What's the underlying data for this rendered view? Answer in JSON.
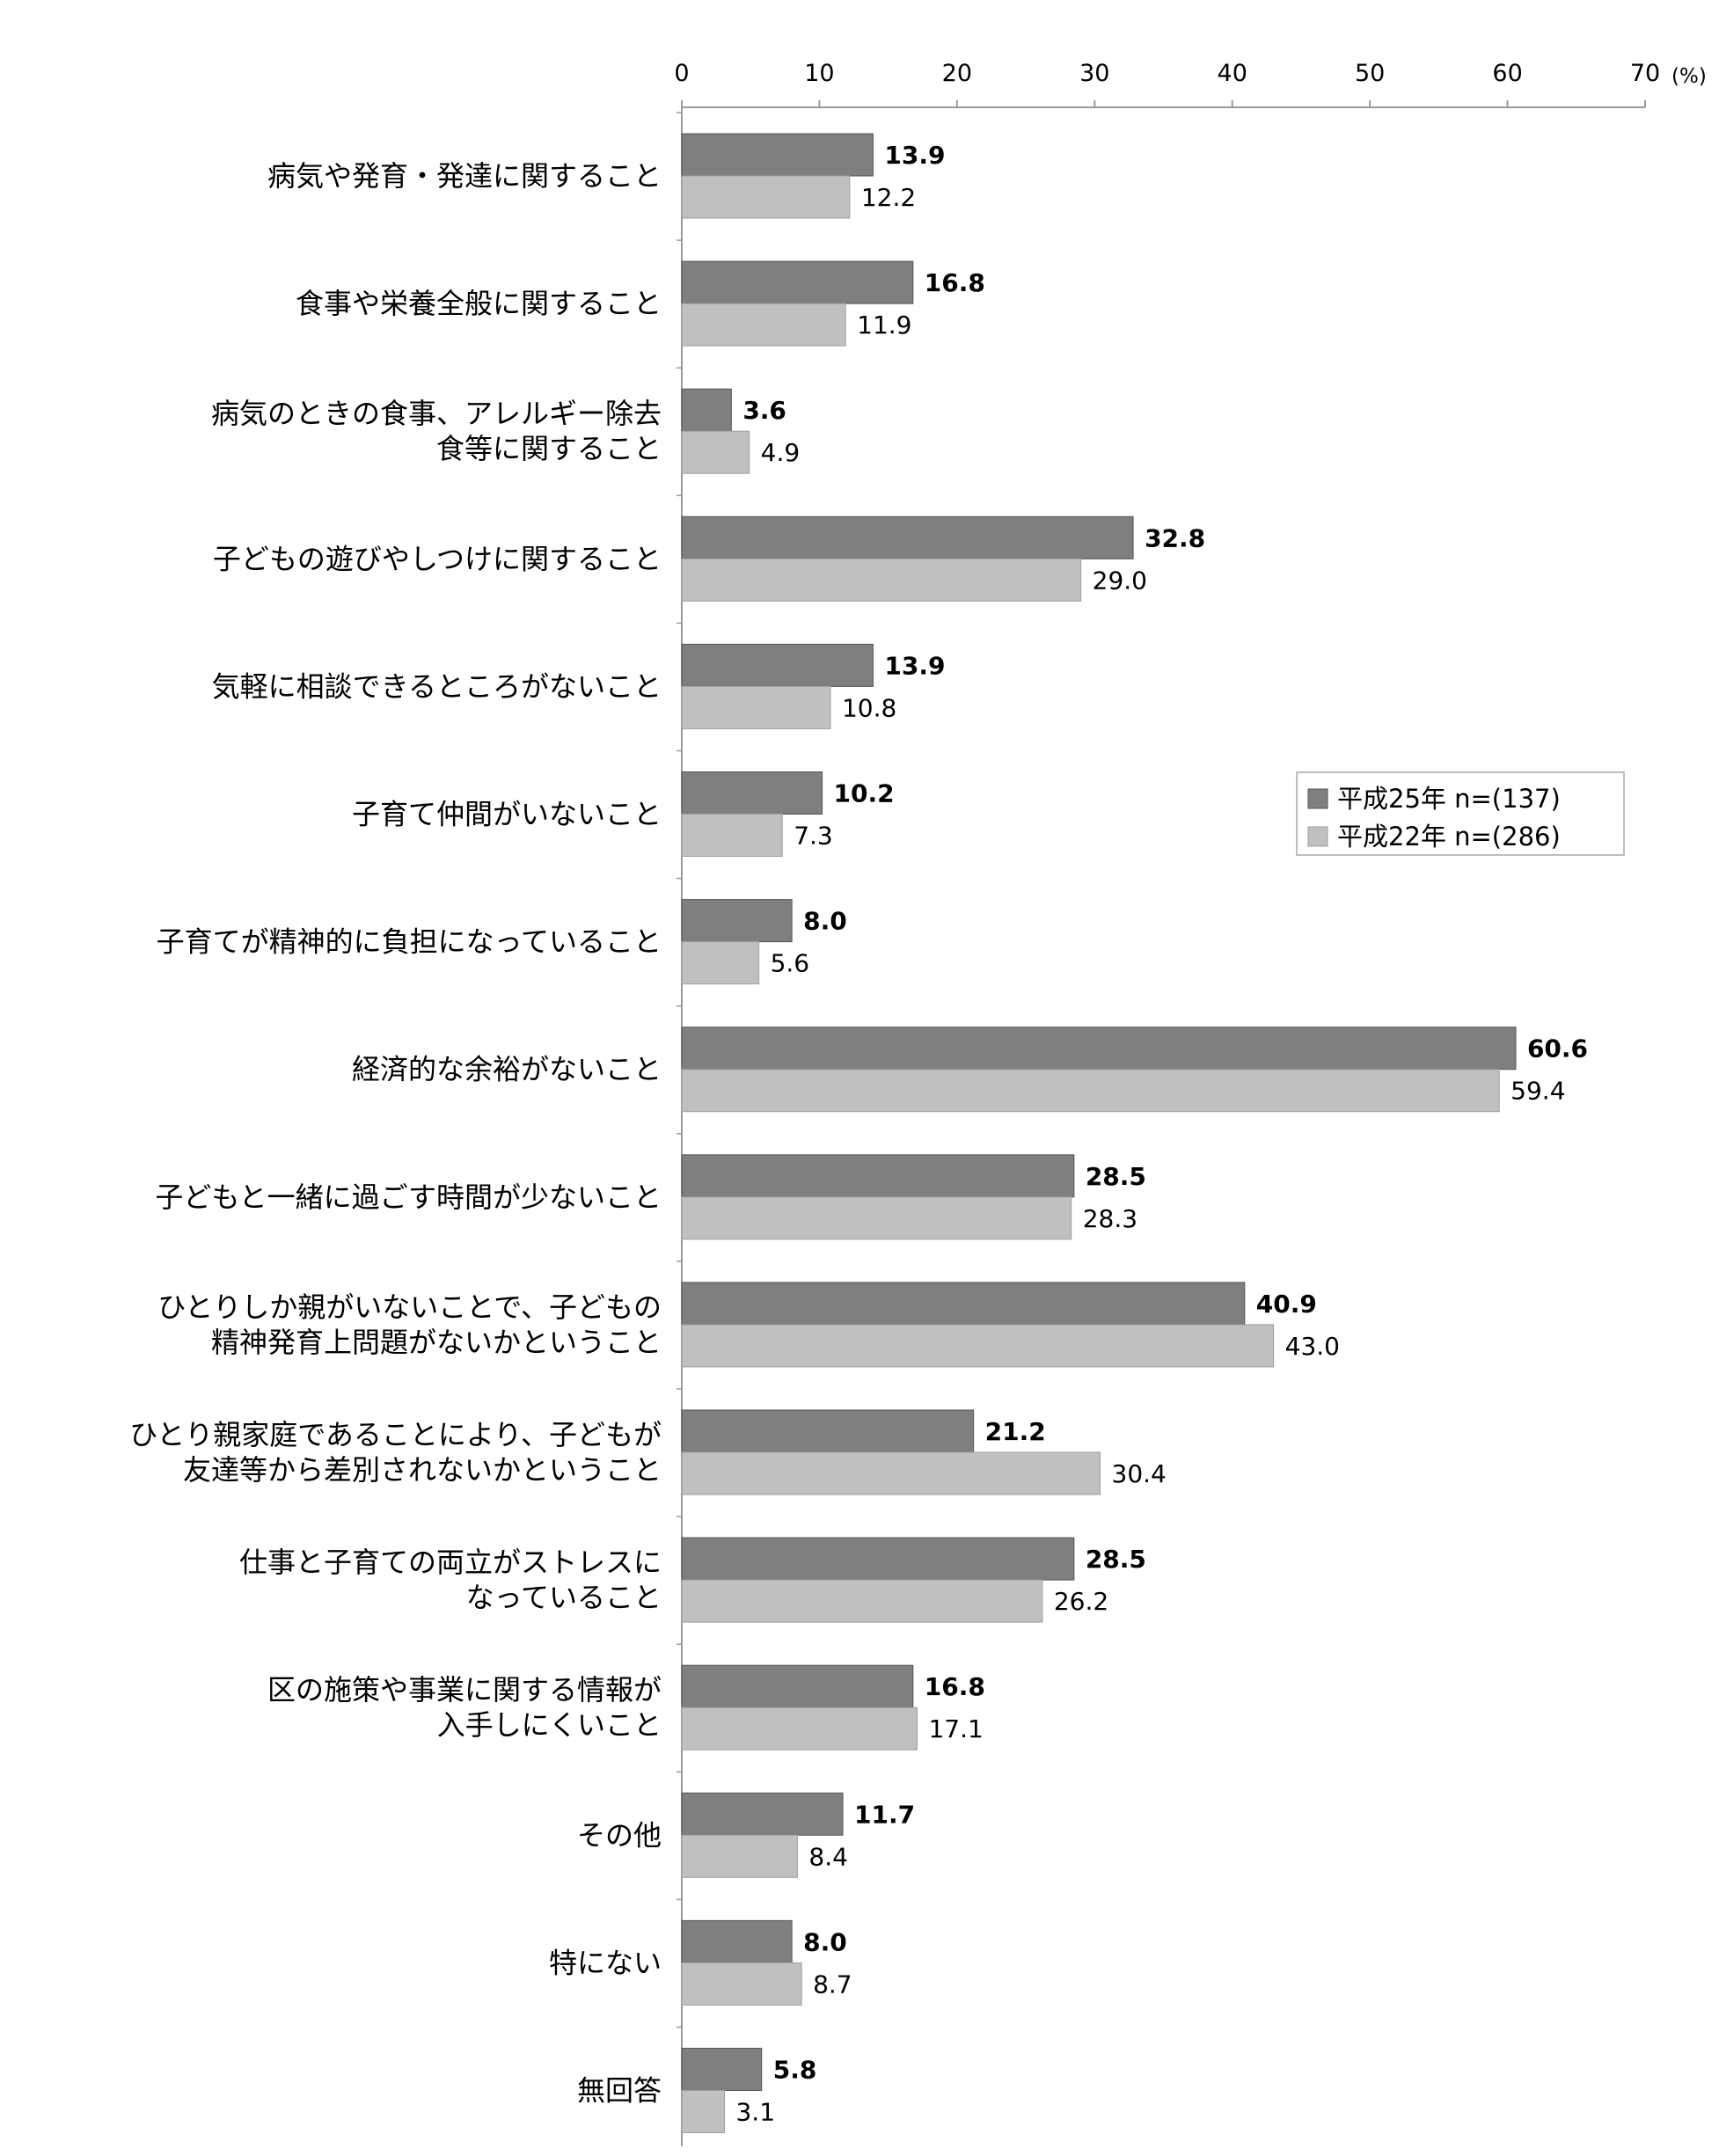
{
  "chart_data": {
    "type": "bar",
    "orientation": "horizontal",
    "unit_label": "(%)",
    "xlim": [
      0,
      70
    ],
    "ticks": [
      0,
      10,
      20,
      30,
      40,
      50,
      60,
      70
    ],
    "grid": false,
    "legend_position": "right-middle",
    "categories": [
      [
        "病気や発育・発達に関すること"
      ],
      [
        "食事や栄養全般に関すること"
      ],
      [
        "病気のときの食事、アレルギー除去",
        "食等に関すること"
      ],
      [
        "子どもの遊びやしつけに関すること"
      ],
      [
        "気軽に相談できるところがないこと"
      ],
      [
        "子育て仲間がいないこと"
      ],
      [
        "子育てが精神的に負担になっていること"
      ],
      [
        "経済的な余裕がないこと"
      ],
      [
        "子どもと一緒に過ごす時間が少ないこと"
      ],
      [
        "ひとりしか親がいないことで、子どもの",
        "精神発育上問題がないかということ"
      ],
      [
        "ひとり親家庭であることにより、子どもが",
        "友達等から差別されないかということ"
      ],
      [
        "仕事と子育ての両立がストレスに",
        "なっていること"
      ],
      [
        "区の施策や事業に関する情報が",
        "入手しにくいこと"
      ],
      [
        "その他"
      ],
      [
        "特にない"
      ],
      [
        "無回答"
      ]
    ],
    "series": [
      {
        "name": "平成25年 n=(137)",
        "color": "#7f7f7f",
        "values": [
          13.9,
          16.8,
          3.6,
          32.8,
          13.9,
          10.2,
          8.0,
          60.6,
          28.5,
          40.9,
          21.2,
          28.5,
          16.8,
          11.7,
          8.0,
          5.8
        ],
        "labels": [
          "13.9",
          "16.8",
          "3.6",
          "32.8",
          "13.9",
          "10.2",
          "8.0",
          "60.6",
          "28.5",
          "40.9",
          "21.2",
          "28.5",
          "16.8",
          "11.7",
          "8.0",
          "5.8"
        ]
      },
      {
        "name": "平成22年 n=(286)",
        "color": "#c0c0c0",
        "values": [
          12.2,
          11.9,
          4.9,
          29.0,
          10.8,
          7.3,
          5.6,
          59.4,
          28.3,
          43.0,
          30.4,
          26.2,
          17.1,
          8.4,
          8.7,
          3.1
        ],
        "labels": [
          "12.2",
          "11.9",
          "4.9",
          "29.0",
          "10.8",
          "7.3",
          "5.6",
          "59.4",
          "28.3",
          "43.0",
          "30.4",
          "26.2",
          "17.1",
          "8.4",
          "8.7",
          "3.1"
        ]
      }
    ]
  }
}
